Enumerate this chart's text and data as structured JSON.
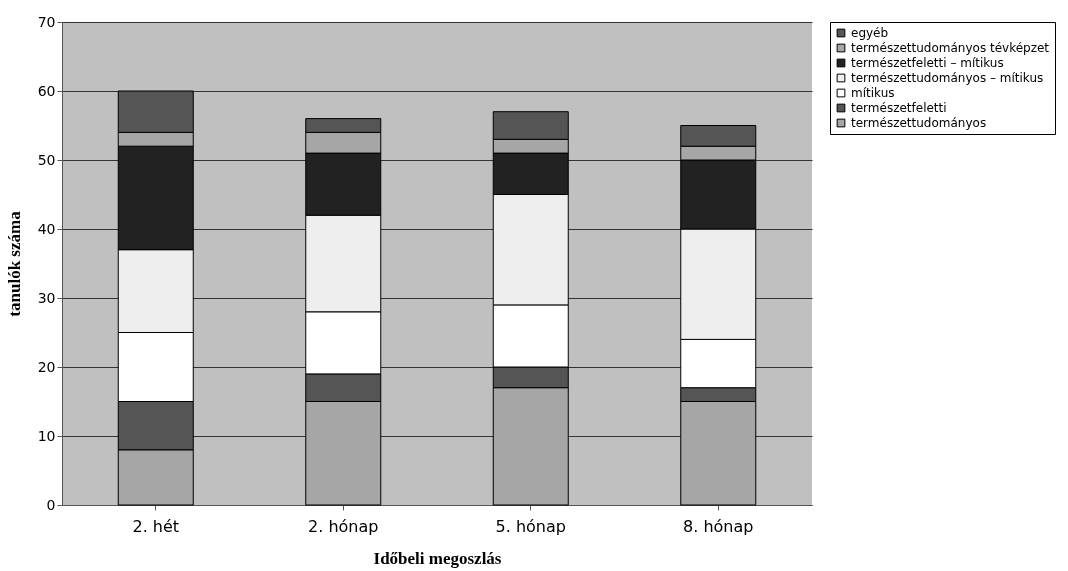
{
  "chart_data": {
    "type": "bar",
    "stacked": true,
    "xlabel": "Időbeli megoszlás",
    "ylabel": "tanulók száma",
    "categories": [
      "2. hét",
      "2. hónap",
      "5. hónap",
      "8. hónap"
    ],
    "series": [
      {
        "name": "természettudományos",
        "color": "#a6a6a6",
        "values": [
          8,
          15,
          17,
          15
        ]
      },
      {
        "name": "természetfeletti",
        "color": "#555555",
        "values": [
          7,
          4,
          3,
          2
        ]
      },
      {
        "name": "mítikus",
        "color": "#ffffff",
        "values": [
          10,
          9,
          9,
          7
        ]
      },
      {
        "name": "természettudományos – mítikus",
        "color": "#eeeeee",
        "values": [
          12,
          14,
          16,
          16
        ]
      },
      {
        "name": "természetfeletti – mítikus",
        "color": "#222222",
        "values": [
          15,
          9,
          6,
          10
        ]
      },
      {
        "name": "természettudományos tévképzet",
        "color": "#a6a6a6",
        "values": [
          2,
          3,
          2,
          2
        ]
      },
      {
        "name": "egyéb",
        "color": "#555555",
        "values": [
          6,
          2,
          4,
          3
        ]
      }
    ],
    "ylim": [
      0,
      70
    ],
    "yticks": [
      0,
      10,
      20,
      30,
      40,
      50,
      60,
      70
    ],
    "grid": "y",
    "legend": "right"
  }
}
